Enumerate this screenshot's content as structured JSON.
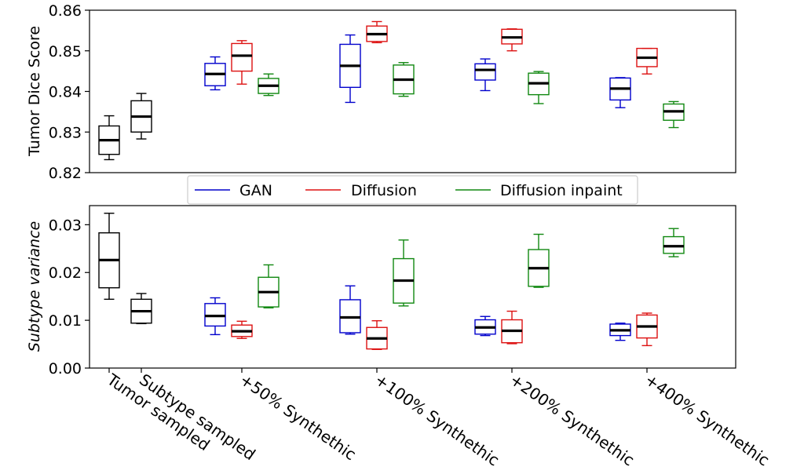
{
  "chart_data": [
    {
      "type": "box",
      "ylabel": "Tumor Dice Score",
      "ylim": [
        0.82,
        0.86
      ],
      "yticks": [
        "0.82",
        "0.83",
        "0.84",
        "0.85",
        "0.86"
      ],
      "categories": [
        "Tumor sampled",
        "Subtype sampled",
        "+50% Synthethic",
        "+100% Synthethic",
        "+200% Synthethic",
        "+400% Synthethic"
      ],
      "baselines": [
        {
          "category": "Tumor sampled",
          "min": 0.8232,
          "q1": 0.8245,
          "median": 0.828,
          "q3": 0.8315,
          "max": 0.834
        },
        {
          "category": "Subtype sampled",
          "min": 0.8283,
          "q1": 0.83,
          "median": 0.8338,
          "q3": 0.8377,
          "max": 0.8395
        }
      ],
      "series": [
        {
          "name": "GAN",
          "color": "#0000cc",
          "boxes": [
            {
              "min": 0.8404,
              "q1": 0.8414,
              "median": 0.8443,
              "q3": 0.8469,
              "max": 0.8485
            },
            {
              "min": 0.8373,
              "q1": 0.841,
              "median": 0.8463,
              "q3": 0.8516,
              "max": 0.8539
            },
            {
              "min": 0.8402,
              "q1": 0.8428,
              "median": 0.8453,
              "q3": 0.8468,
              "max": 0.848
            },
            {
              "min": 0.836,
              "q1": 0.8379,
              "median": 0.8407,
              "q3": 0.8433,
              "max": 0.8434
            }
          ]
        },
        {
          "name": "Diffusion",
          "color": "#dd1111",
          "boxes": [
            {
              "min": 0.8418,
              "q1": 0.845,
              "median": 0.8488,
              "q3": 0.8518,
              "max": 0.8525
            },
            {
              "min": 0.852,
              "q1": 0.8523,
              "median": 0.8541,
              "q3": 0.8561,
              "max": 0.8572
            },
            {
              "min": 0.85,
              "q1": 0.8517,
              "median": 0.8533,
              "q3": 0.8553,
              "max": 0.8554
            },
            {
              "min": 0.8443,
              "q1": 0.8461,
              "median": 0.8483,
              "q3": 0.8506,
              "max": 0.8506
            }
          ]
        },
        {
          "name": "Diffusion inpaint",
          "color": "#118811",
          "boxes": [
            {
              "min": 0.839,
              "q1": 0.8395,
              "median": 0.8414,
              "q3": 0.8432,
              "max": 0.8443
            },
            {
              "min": 0.8388,
              "q1": 0.8394,
              "median": 0.8429,
              "q3": 0.8465,
              "max": 0.8471
            },
            {
              "min": 0.837,
              "q1": 0.8392,
              "median": 0.842,
              "q3": 0.8445,
              "max": 0.8449
            },
            {
              "min": 0.8311,
              "q1": 0.8329,
              "median": 0.8351,
              "q3": 0.8369,
              "max": 0.8375
            }
          ]
        }
      ]
    },
    {
      "type": "box",
      "ylabel": "Subtype variance",
      "ylim": [
        0.0,
        0.034
      ],
      "yticks": [
        "0.00",
        "0.01",
        "0.02",
        "0.03"
      ],
      "categories": [
        "Tumor sampled",
        "Subtype sampled",
        "+50% Synthethic",
        "+100% Synthethic",
        "+200% Synthethic",
        "+400% Synthethic"
      ],
      "baselines": [
        {
          "category": "Tumor sampled",
          "min": 0.0144,
          "q1": 0.0168,
          "median": 0.0226,
          "q3": 0.0283,
          "max": 0.0324
        },
        {
          "category": "Subtype sampled",
          "min": 0.0093,
          "q1": 0.0094,
          "median": 0.0119,
          "q3": 0.0144,
          "max": 0.0156
        }
      ],
      "series": [
        {
          "name": "GAN",
          "color": "#0000cc",
          "boxes": [
            {
              "min": 0.007,
              "q1": 0.0088,
              "median": 0.0109,
              "q3": 0.0135,
              "max": 0.0147
            },
            {
              "min": 0.0071,
              "q1": 0.0074,
              "median": 0.0106,
              "q3": 0.0143,
              "max": 0.0172
            },
            {
              "min": 0.0068,
              "q1": 0.0071,
              "median": 0.0085,
              "q3": 0.0101,
              "max": 0.0108
            },
            {
              "min": 0.0058,
              "q1": 0.0068,
              "median": 0.0079,
              "q3": 0.0092,
              "max": 0.0094
            }
          ]
        },
        {
          "name": "Diffusion",
          "color": "#dd1111",
          "boxes": [
            {
              "min": 0.0062,
              "q1": 0.0066,
              "median": 0.0077,
              "q3": 0.009,
              "max": 0.0098
            },
            {
              "min": 0.0039,
              "q1": 0.004,
              "median": 0.0062,
              "q3": 0.0085,
              "max": 0.0099
            },
            {
              "min": 0.0051,
              "q1": 0.0053,
              "median": 0.0078,
              "q3": 0.0101,
              "max": 0.0119
            },
            {
              "min": 0.0047,
              "q1": 0.0063,
              "median": 0.0087,
              "q3": 0.0111,
              "max": 0.0115
            }
          ]
        },
        {
          "name": "Diffusion inpaint",
          "color": "#118811",
          "boxes": [
            {
              "min": 0.0126,
              "q1": 0.0128,
              "median": 0.0159,
              "q3": 0.019,
              "max": 0.0216
            },
            {
              "min": 0.013,
              "q1": 0.0136,
              "median": 0.0183,
              "q3": 0.0229,
              "max": 0.0268
            },
            {
              "min": 0.0169,
              "q1": 0.0171,
              "median": 0.0209,
              "q3": 0.0248,
              "max": 0.028
            },
            {
              "min": 0.0233,
              "q1": 0.024,
              "median": 0.0255,
              "q3": 0.0275,
              "max": 0.0292
            }
          ]
        }
      ]
    }
  ],
  "legend": {
    "placement": "between-panels-center",
    "items": [
      {
        "label": "GAN",
        "color": "#0000cc"
      },
      {
        "label": "Diffusion",
        "color": "#dd1111"
      },
      {
        "label": "Diffusion inpaint",
        "color": "#118811"
      }
    ]
  },
  "grid": false
}
